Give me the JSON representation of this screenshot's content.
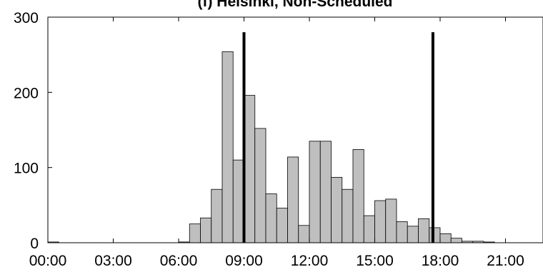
{
  "chart_data": {
    "type": "bar",
    "title": "(f) Helsinki, Non-Scheduled",
    "xlabel": "",
    "ylabel": "",
    "bin_width_hours": 0.5,
    "xlim": [
      0,
      24
    ],
    "ylim": [
      0,
      300
    ],
    "x_tick_values": [
      0,
      3,
      6,
      9,
      12,
      15,
      18,
      21,
      24
    ],
    "x_tick_labels": [
      "00:00",
      "03:00",
      "06:00",
      "09:00",
      "12:00",
      "15:00",
      "18:00",
      "21:00",
      "00:00"
    ],
    "y_tick_values": [
      0,
      100,
      200,
      300
    ],
    "y_tick_labels": [
      "0",
      "100",
      "200",
      "300"
    ],
    "bin_starts": [
      0,
      0.5,
      1,
      1.5,
      2,
      2.5,
      3,
      3.5,
      4,
      4.5,
      5,
      5.5,
      6,
      6.5,
      7,
      7.5,
      8,
      8.5,
      9,
      9.5,
      10,
      10.5,
      11,
      11.5,
      12,
      12.5,
      13,
      13.5,
      14,
      14.5,
      15,
      15.5,
      16,
      16.5,
      17,
      17.5,
      18,
      18.5,
      19,
      19.5,
      20,
      20.5,
      21,
      21.5,
      22,
      22.5,
      23,
      23.5
    ],
    "values": [
      1,
      0,
      0,
      0,
      0,
      0,
      0,
      0,
      0,
      0,
      0,
      0,
      1,
      25,
      33,
      71,
      254,
      110,
      196,
      152,
      65,
      46,
      114,
      23,
      135,
      135,
      87,
      71,
      124,
      36,
      56,
      58,
      28,
      22,
      32,
      20,
      12,
      6,
      2,
      2,
      1,
      0,
      0,
      0,
      0,
      0,
      0,
      0
    ],
    "vertical_lines": [
      {
        "x": 9.0,
        "y_top": 280
      },
      {
        "x": 17.67,
        "y_top": 280
      }
    ],
    "colors": {
      "bar_fill": "#bfbfbf",
      "bar_stroke": "#000000",
      "reference_line": "#000000"
    },
    "grid": false,
    "legend": "none"
  }
}
